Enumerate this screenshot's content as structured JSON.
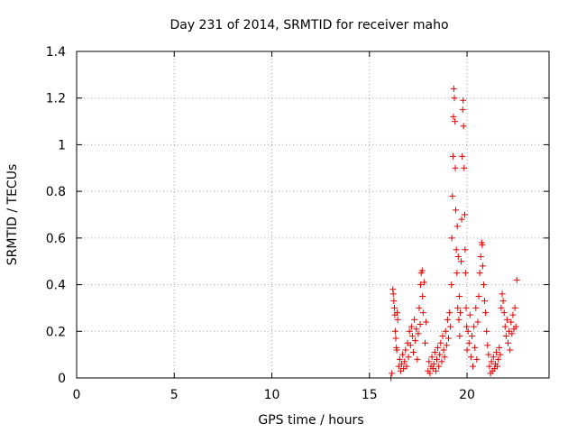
{
  "chart_data": {
    "type": "scatter",
    "title": "Day 231 of 2014, SRMTID for receiver maho",
    "xlabel": "GPS time / hours",
    "ylabel": "SRMTID / TECUs",
    "xlim": [
      0,
      24.2
    ],
    "ylim": [
      0,
      1.4
    ],
    "x_ticks": [
      0,
      5,
      10,
      15,
      20
    ],
    "x_tick_labels": [
      "0",
      "5",
      "10",
      "15",
      "20"
    ],
    "y_ticks": [
      0,
      0.2,
      0.4,
      0.6,
      0.8,
      1.0,
      1.2,
      1.4
    ],
    "y_tick_labels": [
      "0",
      "0.2",
      "0.4",
      "0.6",
      "0.8",
      "1",
      "1.2",
      "1.4"
    ],
    "grid": true,
    "marker": "plus",
    "color": "#dd0000",
    "series": [
      {
        "name": "SRMTID",
        "points": [
          [
            16.1,
            0.0
          ],
          [
            16.15,
            0.02
          ],
          [
            16.2,
            0.38
          ],
          [
            16.22,
            0.36
          ],
          [
            16.25,
            0.33
          ],
          [
            16.28,
            0.3
          ],
          [
            16.3,
            0.27
          ],
          [
            16.32,
            0.2
          ],
          [
            16.35,
            0.17
          ],
          [
            16.38,
            0.13
          ],
          [
            16.4,
            0.12
          ],
          [
            16.42,
            0.28
          ],
          [
            16.45,
            0.25
          ],
          [
            16.5,
            0.05
          ],
          [
            16.55,
            0.08
          ],
          [
            16.6,
            0.03
          ],
          [
            16.65,
            0.06
          ],
          [
            16.7,
            0.1
          ],
          [
            16.75,
            0.04
          ],
          [
            16.8,
            0.07
          ],
          [
            16.85,
            0.12
          ],
          [
            16.9,
            0.05
          ],
          [
            16.95,
            0.15
          ],
          [
            17.0,
            0.09
          ],
          [
            17.05,
            0.2
          ],
          [
            17.1,
            0.14
          ],
          [
            17.15,
            0.22
          ],
          [
            17.2,
            0.18
          ],
          [
            17.25,
            0.11
          ],
          [
            17.3,
            0.25
          ],
          [
            17.35,
            0.16
          ],
          [
            17.4,
            0.21
          ],
          [
            17.45,
            0.08
          ],
          [
            17.5,
            0.19
          ],
          [
            17.55,
            0.3
          ],
          [
            17.6,
            0.23
          ],
          [
            17.62,
            0.4
          ],
          [
            17.65,
            0.45
          ],
          [
            17.7,
            0.46
          ],
          [
            17.72,
            0.35
          ],
          [
            17.75,
            0.28
          ],
          [
            17.8,
            0.41
          ],
          [
            17.85,
            0.15
          ],
          [
            17.9,
            0.24
          ],
          [
            18.0,
            0.03
          ],
          [
            18.05,
            0.07
          ],
          [
            18.1,
            0.02
          ],
          [
            18.15,
            0.05
          ],
          [
            18.2,
            0.09
          ],
          [
            18.25,
            0.04
          ],
          [
            18.3,
            0.06
          ],
          [
            18.35,
            0.11
          ],
          [
            18.4,
            0.03
          ],
          [
            18.45,
            0.08
          ],
          [
            18.5,
            0.13
          ],
          [
            18.55,
            0.05
          ],
          [
            18.6,
            0.1
          ],
          [
            18.65,
            0.15
          ],
          [
            18.7,
            0.07
          ],
          [
            18.75,
            0.18
          ],
          [
            18.8,
            0.12
          ],
          [
            18.85,
            0.09
          ],
          [
            18.9,
            0.2
          ],
          [
            18.95,
            0.14
          ],
          [
            19.0,
            0.25
          ],
          [
            19.05,
            0.17
          ],
          [
            19.1,
            0.28
          ],
          [
            19.15,
            0.22
          ],
          [
            19.2,
            0.4
          ],
          [
            19.22,
            0.6
          ],
          [
            19.25,
            0.78
          ],
          [
            19.28,
            0.95
          ],
          [
            19.3,
            1.12
          ],
          [
            19.32,
            1.24
          ],
          [
            19.35,
            1.2
          ],
          [
            19.38,
            1.1
          ],
          [
            19.4,
            0.9
          ],
          [
            19.42,
            0.72
          ],
          [
            19.45,
            0.55
          ],
          [
            19.48,
            0.45
          ],
          [
            19.5,
            0.65
          ],
          [
            19.52,
            0.3
          ],
          [
            19.55,
            0.52
          ],
          [
            19.58,
            0.25
          ],
          [
            19.6,
            0.35
          ],
          [
            19.62,
            0.18
          ],
          [
            19.65,
            0.28
          ],
          [
            19.7,
            0.5
          ],
          [
            19.72,
            0.68
          ],
          [
            19.75,
            0.95
          ],
          [
            19.78,
            1.15
          ],
          [
            19.8,
            1.19
          ],
          [
            19.82,
            1.08
          ],
          [
            19.85,
            0.9
          ],
          [
            19.88,
            0.7
          ],
          [
            19.9,
            0.55
          ],
          [
            19.92,
            0.45
          ],
          [
            19.95,
            0.3
          ],
          [
            19.98,
            0.22
          ],
          [
            20.0,
            0.12
          ],
          [
            20.05,
            0.2
          ],
          [
            20.1,
            0.15
          ],
          [
            20.15,
            0.27
          ],
          [
            20.2,
            0.09
          ],
          [
            20.25,
            0.18
          ],
          [
            20.3,
            0.05
          ],
          [
            20.35,
            0.22
          ],
          [
            20.4,
            0.13
          ],
          [
            20.45,
            0.3
          ],
          [
            20.5,
            0.08
          ],
          [
            20.55,
            0.24
          ],
          [
            20.6,
            0.35
          ],
          [
            20.65,
            0.45
          ],
          [
            20.7,
            0.52
          ],
          [
            20.75,
            0.58
          ],
          [
            20.78,
            0.57
          ],
          [
            20.8,
            0.48
          ],
          [
            20.85,
            0.4
          ],
          [
            20.9,
            0.33
          ],
          [
            20.95,
            0.28
          ],
          [
            21.0,
            0.2
          ],
          [
            21.05,
            0.14
          ],
          [
            21.1,
            0.1
          ],
          [
            21.15,
            0.05
          ],
          [
            21.2,
            0.02
          ],
          [
            21.25,
            0.07
          ],
          [
            21.3,
            0.03
          ],
          [
            21.35,
            0.09
          ],
          [
            21.4,
            0.04
          ],
          [
            21.45,
            0.06
          ],
          [
            21.5,
            0.11
          ],
          [
            21.55,
            0.05
          ],
          [
            21.6,
            0.08
          ],
          [
            21.65,
            0.13
          ],
          [
            21.7,
            0.1
          ],
          [
            21.75,
            0.3
          ],
          [
            21.8,
            0.36
          ],
          [
            21.85,
            0.33
          ],
          [
            21.9,
            0.28
          ],
          [
            21.95,
            0.22
          ],
          [
            22.0,
            0.18
          ],
          [
            22.05,
            0.25
          ],
          [
            22.1,
            0.15
          ],
          [
            22.15,
            0.2
          ],
          [
            22.2,
            0.12
          ],
          [
            22.25,
            0.24
          ],
          [
            22.3,
            0.19
          ],
          [
            22.35,
            0.27
          ],
          [
            22.4,
            0.21
          ],
          [
            22.45,
            0.3
          ],
          [
            22.5,
            0.22
          ],
          [
            22.55,
            0.42
          ]
        ]
      }
    ]
  }
}
